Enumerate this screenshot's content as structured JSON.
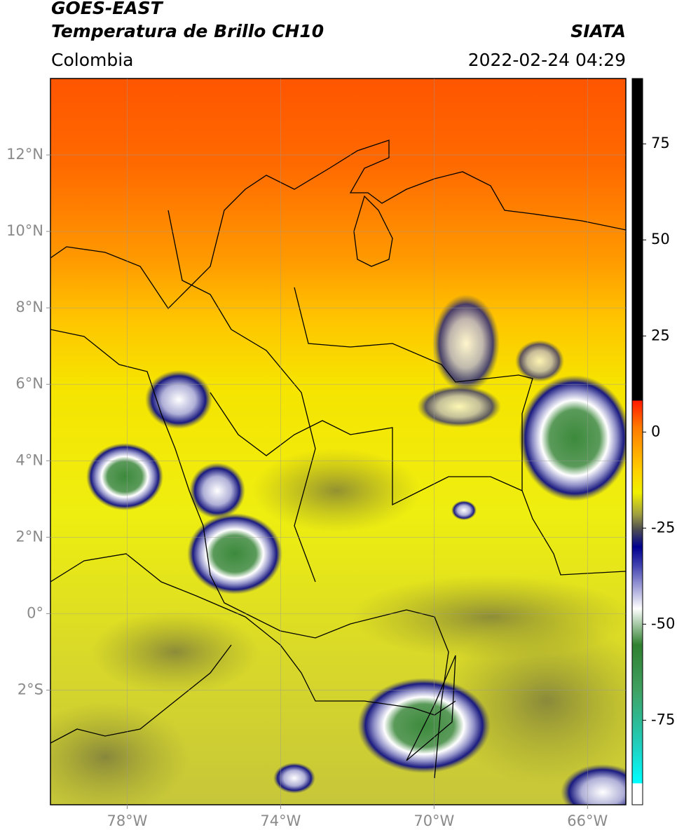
{
  "header": {
    "title": "GOES-EAST",
    "subtitle": "Temperatura de Brillo CH10",
    "region": "Colombia",
    "source": "SIATA",
    "datetime": "2022-02-24 04:29"
  },
  "map": {
    "lonlim": [
      -80,
      -65
    ],
    "latlim": [
      -5,
      14
    ],
    "lon_ticks": [
      {
        "value": -78,
        "label": "78°W"
      },
      {
        "value": -74,
        "label": "74°W"
      },
      {
        "value": -70,
        "label": "70°W"
      },
      {
        "value": -66,
        "label": "66°W"
      }
    ],
    "lat_ticks": [
      {
        "value": 12,
        "label": "12°N"
      },
      {
        "value": 10,
        "label": "10°N"
      },
      {
        "value": 8,
        "label": "8°N"
      },
      {
        "value": 6,
        "label": "6°N"
      },
      {
        "value": 4,
        "label": "4°N"
      },
      {
        "value": 2,
        "label": "2°N"
      },
      {
        "value": 0,
        "label": "0°"
      },
      {
        "value": -2,
        "label": "2°S"
      }
    ]
  },
  "colorbar": {
    "lim": [
      -97,
      92
    ],
    "ticks": [
      75,
      50,
      25,
      0,
      -25,
      -50,
      -75
    ]
  }
}
